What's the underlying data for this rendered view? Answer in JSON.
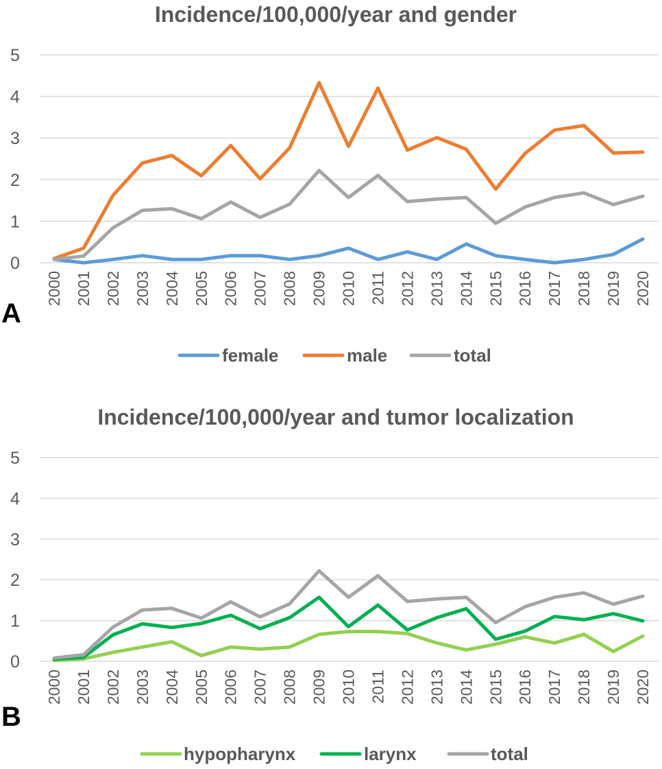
{
  "chart_data": [
    {
      "type": "line",
      "title": "Incidence/100,000/year and gender",
      "panel_label": "A",
      "xlabel": "",
      "ylabel": "",
      "ylim": [
        0,
        5
      ],
      "yticks": [
        "0",
        "1",
        "2",
        "3",
        "4",
        "5"
      ],
      "grid": true,
      "legend_position": "bottom",
      "categories": [
        "2000",
        "2001",
        "2002",
        "2003",
        "2004",
        "2005",
        "2006",
        "2007",
        "2008",
        "2009",
        "2010",
        "2011",
        "2012",
        "2013",
        "2014",
        "2015",
        "2016",
        "2017",
        "2018",
        "2019",
        "2020"
      ],
      "series": [
        {
          "name": "female",
          "color": "#5b9bd5",
          "values": [
            0.08,
            0.0,
            0.08,
            0.17,
            0.08,
            0.08,
            0.17,
            0.17,
            0.08,
            0.17,
            0.35,
            0.08,
            0.26,
            0.08,
            0.45,
            0.17,
            0.08,
            0.0,
            0.08,
            0.2,
            0.57
          ]
        },
        {
          "name": "male",
          "color": "#ed7d31",
          "values": [
            0.1,
            0.35,
            1.62,
            2.4,
            2.58,
            2.09,
            2.82,
            2.02,
            2.76,
            4.33,
            2.8,
            4.2,
            2.71,
            3.01,
            2.73,
            1.77,
            2.63,
            3.19,
            3.3,
            2.64,
            2.66
          ]
        },
        {
          "name": "total",
          "color": "#a5a5a5",
          "values": [
            0.08,
            0.16,
            0.84,
            1.26,
            1.3,
            1.06,
            1.46,
            1.09,
            1.41,
            2.22,
            1.57,
            2.1,
            1.47,
            1.53,
            1.57,
            0.95,
            1.34,
            1.57,
            1.68,
            1.4,
            1.6
          ]
        }
      ]
    },
    {
      "type": "line",
      "title": "Incidence/100,000/year  and tumor localization",
      "panel_label": "B",
      "xlabel": "",
      "ylabel": "",
      "ylim": [
        0,
        5
      ],
      "yticks": [
        "0",
        "1",
        "2",
        "3",
        "4",
        "5"
      ],
      "grid": true,
      "legend_position": "bottom",
      "categories": [
        "2000",
        "2001",
        "2002",
        "2003",
        "2004",
        "2005",
        "2006",
        "2007",
        "2008",
        "2009",
        "2010",
        "2011",
        "2012",
        "2013",
        "2014",
        "2015",
        "2016",
        "2017",
        "2018",
        "2019",
        "2020"
      ],
      "series": [
        {
          "name": "hypopharynx",
          "color": "#92d050",
          "values": [
            0.02,
            0.06,
            0.22,
            0.35,
            0.48,
            0.14,
            0.35,
            0.3,
            0.35,
            0.66,
            0.73,
            0.73,
            0.68,
            0.45,
            0.28,
            0.42,
            0.6,
            0.45,
            0.66,
            0.24,
            0.62
          ]
        },
        {
          "name": "larynx",
          "color": "#00b050",
          "values": [
            0.05,
            0.1,
            0.65,
            0.92,
            0.83,
            0.93,
            1.13,
            0.8,
            1.07,
            1.57,
            0.85,
            1.38,
            0.77,
            1.07,
            1.29,
            0.54,
            0.74,
            1.1,
            1.02,
            1.17,
            0.99
          ]
        },
        {
          "name": "total",
          "color": "#a5a5a5",
          "values": [
            0.08,
            0.16,
            0.84,
            1.26,
            1.3,
            1.06,
            1.46,
            1.09,
            1.41,
            2.22,
            1.57,
            2.1,
            1.47,
            1.53,
            1.57,
            0.95,
            1.34,
            1.57,
            1.68,
            1.4,
            1.6
          ]
        }
      ]
    }
  ]
}
